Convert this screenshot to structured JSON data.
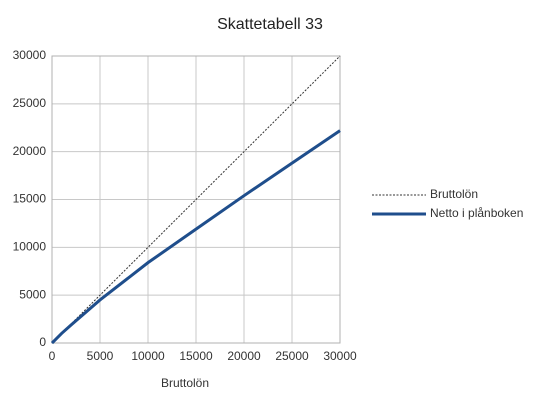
{
  "chart_data": {
    "type": "line",
    "title": "Skattetabell 33",
    "x_label": "Bruttolön",
    "x": [
      0,
      1000,
      2000,
      5000,
      10000,
      15000,
      20000,
      25000,
      30000
    ],
    "series": [
      {
        "name": "Bruttolön",
        "color": "#333333",
        "dashed": true,
        "width": 1,
        "values": [
          0,
          1000,
          2000,
          5000,
          10000,
          15000,
          20000,
          25000,
          30000
        ]
      },
      {
        "name": "Netto i plånboken",
        "color": "#1f4e8c",
        "dashed": false,
        "width": 3,
        "values": [
          0,
          1000,
          1900,
          4500,
          8400,
          11900,
          15400,
          18800,
          22200
        ]
      }
    ],
    "xlim": [
      0,
      30000
    ],
    "xticks": [
      0,
      5000,
      10000,
      15000,
      20000,
      25000,
      30000
    ],
    "ylim": [
      0,
      30000
    ],
    "yticks": [
      0,
      5000,
      10000,
      15000,
      20000,
      25000,
      30000
    ],
    "grid": true,
    "legend": "right"
  }
}
